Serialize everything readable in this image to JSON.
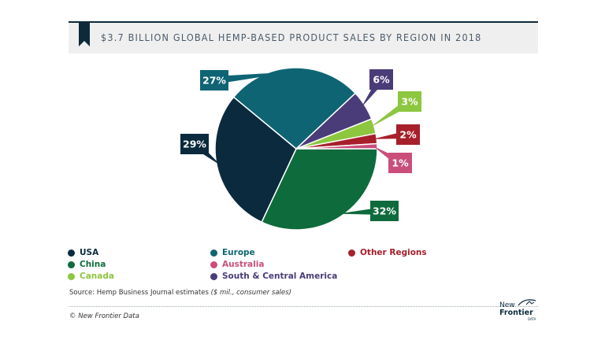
{
  "header": {
    "title": "$3.7 BILLION GLOBAL HEMP-BASED PRODUCT SALES BY REGION IN 2018"
  },
  "chart_data": {
    "type": "pie",
    "title": "$3.7 BILLION GLOBAL HEMP-BASED PRODUCT SALES BY REGION IN 2018",
    "categories": [
      "China",
      "USA",
      "Europe",
      "South & Central America",
      "Canada",
      "Other Regions",
      "Australia"
    ],
    "values": [
      32,
      29,
      27,
      6,
      3,
      2,
      1
    ],
    "labels": [
      "32%",
      "29%",
      "27%",
      "6%",
      "3%",
      "2%",
      "1%"
    ],
    "colors": [
      "#0e6b3c",
      "#0b2a3d",
      "#0f6474",
      "#4a3c78",
      "#8dc63f",
      "#a71f2b",
      "#c94f7a"
    ],
    "legend_position": "bottom"
  },
  "legend": {
    "items": [
      {
        "label": "USA",
        "color": "#0b2a3d"
      },
      {
        "label": "China",
        "color": "#0e6b3c"
      },
      {
        "label": "Canada",
        "color": "#8dc63f"
      },
      {
        "label": "Europe",
        "color": "#0f6474"
      },
      {
        "label": "Australia",
        "color": "#c94f7a"
      },
      {
        "label": "South & Central America",
        "color": "#4a3c78"
      },
      {
        "label": "Other Regions",
        "color": "#a71f2b"
      }
    ]
  },
  "footer": {
    "source_prefix": "Source: Hemp Business Journal estimates ",
    "source_note": "($ mil., consumer sales)",
    "copyright": "© New Frontier Data",
    "logo_line1": "New",
    "logo_line2": "Frontier",
    "logo_line3": "DATA"
  }
}
